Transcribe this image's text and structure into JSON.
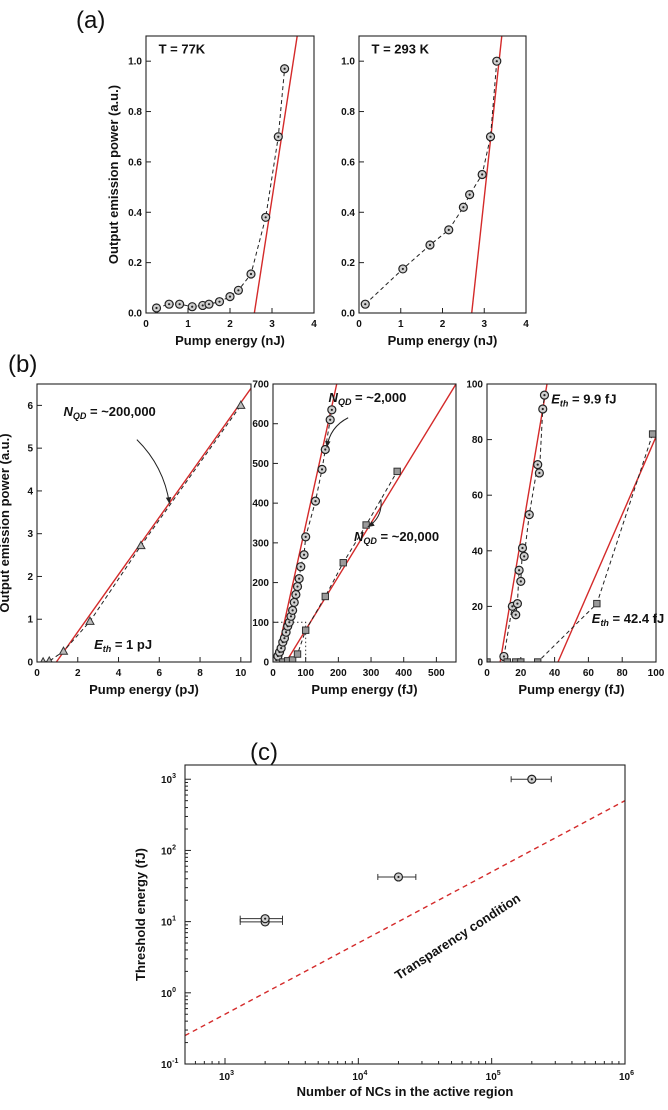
{
  "panels": {
    "a": "(a)",
    "b": "(b)",
    "c": "(c)"
  },
  "chart_data": [
    {
      "id": "a1",
      "type": "scatter",
      "xlabel": "Pump energy (nJ)",
      "ylabel": "Output emission power (a.u.)",
      "xlim": [
        0,
        4
      ],
      "ylim": [
        0,
        1.1
      ],
      "xticks": [
        0,
        1,
        2,
        3,
        4
      ],
      "yticks": [
        0.0,
        0.2,
        0.4,
        0.6,
        0.8,
        1.0
      ],
      "ytick_decimals": 1,
      "annotations": [
        {
          "text": "T = 77K",
          "x": 0.3,
          "y": 1.03
        }
      ],
      "series": [
        {
          "marker": "circle",
          "connect": "dashed",
          "x": [
            0.25,
            0.55,
            0.8,
            1.1,
            1.35,
            1.5,
            1.75,
            2.0,
            2.2,
            2.5,
            2.85,
            3.15,
            3.3
          ],
          "y": [
            0.02,
            0.035,
            0.035,
            0.025,
            0.03,
            0.035,
            0.045,
            0.065,
            0.09,
            0.155,
            0.38,
            0.7,
            0.97
          ]
        }
      ],
      "fit_lines": [
        {
          "x": [
            2.58,
            3.6
          ],
          "y": [
            0.0,
            1.1
          ]
        }
      ]
    },
    {
      "id": "a2",
      "type": "scatter",
      "xlabel": "Pump energy (nJ)",
      "ylabel": "",
      "xlim": [
        0,
        4
      ],
      "ylim": [
        0,
        1.1
      ],
      "xticks": [
        0,
        1,
        2,
        3,
        4
      ],
      "yticks": [
        0.0,
        0.2,
        0.4,
        0.6,
        0.8,
        1.0
      ],
      "ytick_decimals": 1,
      "annotations": [
        {
          "text": "T = 293 K",
          "x": 0.3,
          "y": 1.03
        }
      ],
      "series": [
        {
          "marker": "circle",
          "connect": "dashed",
          "x": [
            0.15,
            1.05,
            1.7,
            2.15,
            2.5,
            2.65,
            2.95,
            3.15,
            3.3
          ],
          "y": [
            0.035,
            0.175,
            0.27,
            0.33,
            0.42,
            0.47,
            0.55,
            0.7,
            1.0
          ]
        }
      ],
      "fit_lines": [
        {
          "x": [
            2.7,
            3.42
          ],
          "y": [
            0.0,
            1.1
          ]
        }
      ]
    },
    {
      "id": "b1",
      "type": "scatter",
      "xlabel": "Pump energy (pJ)",
      "ylabel": "Output emission power (a.u.)",
      "xlim": [
        0,
        10.5
      ],
      "ylim": [
        0,
        6.5
      ],
      "xticks": [
        0,
        2,
        4,
        6,
        8,
        10
      ],
      "yticks": [
        0,
        1,
        2,
        3,
        4,
        5,
        6
      ],
      "ytick_decimals": 0,
      "annotations": [
        {
          "text": "N",
          "sub": "QD",
          "rest": " = ~200,000",
          "x": 1.3,
          "y": 5.75
        },
        {
          "text": "E",
          "sub": "th",
          "rest": " = 1 pJ",
          "x": 2.8,
          "y": 0.3
        }
      ],
      "arrows": [
        {
          "from": [
            4.9,
            5.2
          ],
          "to": [
            6.5,
            3.7
          ],
          "bend": -1.0
        }
      ],
      "series": [
        {
          "marker": "triangle",
          "connect": "dashed",
          "x": [
            0.3,
            0.6,
            1.3,
            2.6,
            5.1,
            10.0
          ],
          "y": [
            0.0,
            0.02,
            0.25,
            0.95,
            2.72,
            6.0
          ]
        }
      ],
      "fit_lines": [
        {
          "x": [
            0.95,
            10.5
          ],
          "y": [
            0.0,
            6.4
          ]
        }
      ]
    },
    {
      "id": "b2",
      "type": "scatter",
      "xlabel": "Pump energy (fJ)",
      "ylabel": "",
      "xlim": [
        0,
        560
      ],
      "ylim": [
        0,
        700
      ],
      "xticks": [
        0,
        100,
        200,
        300,
        400,
        500
      ],
      "yticks": [
        0,
        100,
        200,
        300,
        400,
        500,
        600,
        700
      ],
      "ytick_decimals": 0,
      "annotations": [
        {
          "text": "N",
          "sub": "QD",
          "rest": " = ~2,000",
          "x": 170,
          "y": 655
        },
        {
          "text": "N",
          "sub": "QD",
          "rest": " = ~20,000",
          "x": 248,
          "y": 305
        }
      ],
      "arrows": [
        {
          "from": [
            230,
            615
          ],
          "to": [
            165,
            540
          ],
          "bend": 0.8
        },
        {
          "from": [
            330,
            410
          ],
          "to": [
            290,
            340
          ],
          "bend": -0.8
        }
      ],
      "inset_box": {
        "x": [
          0,
          100
        ],
        "y": [
          0,
          100
        ]
      },
      "series": [
        {
          "marker": "circle",
          "connect": "dashed",
          "x": [
            10,
            15,
            20,
            25,
            30,
            35,
            40,
            45,
            50,
            55,
            60,
            65,
            70,
            75,
            80,
            85,
            95,
            100,
            130,
            150,
            160,
            175,
            180
          ],
          "y": [
            5,
            15,
            25,
            35,
            50,
            60,
            75,
            90,
            100,
            115,
            130,
            150,
            170,
            190,
            210,
            240,
            270,
            315,
            405,
            485,
            535,
            610,
            635
          ]
        },
        {
          "marker": "square",
          "connect": "dashed",
          "x": [
            30,
            45,
            60,
            75,
            100,
            160,
            215,
            285,
            380
          ],
          "y": [
            0,
            3,
            5,
            20,
            80,
            165,
            250,
            345,
            480
          ]
        }
      ],
      "fit_lines": [
        {
          "x": [
            8,
            195
          ],
          "y": [
            0,
            700
          ]
        },
        {
          "x": [
            40,
            560
          ],
          "y": [
            0,
            700
          ]
        }
      ]
    },
    {
      "id": "b3",
      "type": "scatter",
      "xlabel": "Pump energy (fJ)",
      "ylabel": "",
      "xlim": [
        0,
        100
      ],
      "ylim": [
        0,
        100
      ],
      "xticks": [
        0,
        20,
        40,
        60,
        80,
        100
      ],
      "yticks": [
        0,
        20,
        40,
        60,
        80,
        100
      ],
      "ytick_decimals": 0,
      "annotations": [
        {
          "text": "E",
          "sub": "th",
          "rest": " = 9.9 fJ",
          "x": 38,
          "y": 93
        },
        {
          "text": "E",
          "sub": "th",
          "rest": " = 42.4 fJ",
          "x": 62,
          "y": 14
        }
      ],
      "series": [
        {
          "marker": "circle",
          "connect": "dashed",
          "x": [
            10,
            15,
            17,
            18,
            19,
            20,
            21,
            22,
            25,
            30,
            31,
            33,
            34
          ],
          "y": [
            2,
            20,
            17,
            21,
            33,
            29,
            41,
            38,
            53,
            71,
            68,
            91,
            96
          ]
        },
        {
          "marker": "square",
          "connect": "dashed",
          "x": [
            0,
            12,
            17,
            20,
            30,
            65,
            98
          ],
          "y": [
            0,
            0,
            0,
            0,
            0,
            21,
            82
          ]
        }
      ],
      "fit_lines": [
        {
          "x": [
            7.8,
            35.5
          ],
          "y": [
            0,
            100
          ]
        },
        {
          "x": [
            42,
            100
          ],
          "y": [
            0,
            81
          ]
        }
      ]
    },
    {
      "id": "c",
      "type": "scatter",
      "log": true,
      "xlabel": "Number of NCs in the active region",
      "ylabel": "Threshold energy (fJ)",
      "xlim_exp": [
        2.7,
        6
      ],
      "ylim_exp": [
        -1,
        3.2
      ],
      "xtick_exps": [
        3,
        4,
        5,
        6
      ],
      "ytick_exps": [
        -1,
        0,
        1,
        2,
        3
      ],
      "annotations": [
        {
          "text": "Transparency condition",
          "x": 20000,
          "y": 1.5,
          "rotate": -33
        }
      ],
      "series": [
        {
          "marker": "circle",
          "x": [
            2000,
            2000,
            20000,
            200000
          ],
          "y": [
            9.9,
            11,
            42.4,
            1000
          ],
          "xerr_lo": [
            1300,
            1300,
            14000,
            140000
          ],
          "xerr_hi": [
            2700,
            2700,
            27000,
            280000
          ]
        }
      ],
      "dashed_line": {
        "x": [
          500,
          1000000
        ],
        "y": [
          0.25,
          500
        ]
      }
    }
  ]
}
